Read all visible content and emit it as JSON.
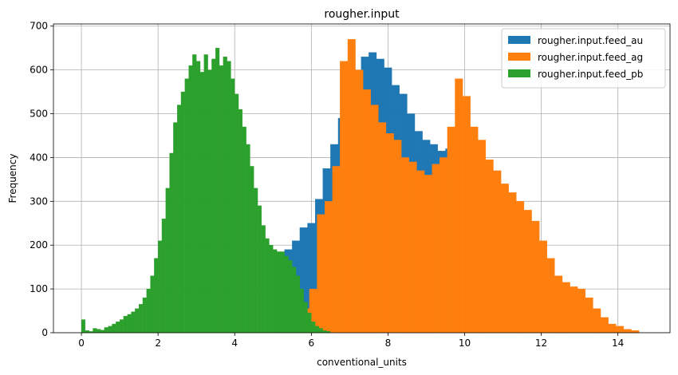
{
  "chart_data": {
    "type": "histogram",
    "title": "rougher.input",
    "xlabel": "conventional_units",
    "ylabel": "Frequency",
    "xlim": [
      -0.73,
      15.36
    ],
    "ylim": [
      0,
      705
    ],
    "x_ticks": [
      0,
      2,
      4,
      6,
      8,
      10,
      12,
      14
    ],
    "y_ticks": [
      0,
      100,
      200,
      300,
      400,
      500,
      600,
      700
    ],
    "grid": true,
    "legend_position": "top-right",
    "series": [
      {
        "name": "rougher.input.feed_au",
        "color": "#1f77b4",
        "bins": [
          [
            5.1,
            5.3,
            175
          ],
          [
            5.3,
            5.5,
            190
          ],
          [
            5.5,
            5.7,
            210
          ],
          [
            5.7,
            5.9,
            240
          ],
          [
            5.9,
            6.1,
            250
          ],
          [
            6.1,
            6.3,
            305
          ],
          [
            6.3,
            6.5,
            375
          ],
          [
            6.5,
            6.7,
            430
          ],
          [
            6.7,
            6.9,
            490
          ],
          [
            6.9,
            7.1,
            540
          ],
          [
            7.1,
            7.3,
            590
          ],
          [
            7.3,
            7.5,
            630
          ],
          [
            7.5,
            7.7,
            640
          ],
          [
            7.7,
            7.9,
            625
          ],
          [
            7.9,
            8.1,
            605
          ],
          [
            8.1,
            8.3,
            565
          ],
          [
            8.3,
            8.5,
            545
          ],
          [
            8.5,
            8.7,
            500
          ],
          [
            8.7,
            8.9,
            460
          ],
          [
            8.9,
            9.1,
            440
          ],
          [
            9.1,
            9.3,
            430
          ],
          [
            9.3,
            9.5,
            415
          ],
          [
            9.5,
            9.7,
            420
          ],
          [
            9.7,
            9.9,
            425
          ]
        ]
      },
      {
        "name": "rougher.input.feed_ag",
        "color": "#ff7f0e",
        "bins": [
          [
            5.75,
            5.95,
            55
          ],
          [
            5.95,
            6.15,
            100
          ],
          [
            6.15,
            6.35,
            270
          ],
          [
            6.35,
            6.55,
            300
          ],
          [
            6.55,
            6.75,
            380
          ],
          [
            6.75,
            6.95,
            620
          ],
          [
            6.95,
            7.15,
            670
          ],
          [
            7.15,
            7.35,
            600
          ],
          [
            7.35,
            7.55,
            555
          ],
          [
            7.55,
            7.75,
            520
          ],
          [
            7.75,
            7.95,
            480
          ],
          [
            7.95,
            8.15,
            455
          ],
          [
            8.15,
            8.35,
            440
          ],
          [
            8.35,
            8.55,
            400
          ],
          [
            8.55,
            8.75,
            390
          ],
          [
            8.75,
            8.95,
            370
          ],
          [
            8.95,
            9.15,
            360
          ],
          [
            9.15,
            9.35,
            385
          ],
          [
            9.35,
            9.55,
            400
          ],
          [
            9.55,
            9.75,
            470
          ],
          [
            9.75,
            9.95,
            580
          ],
          [
            9.95,
            10.15,
            540
          ],
          [
            10.15,
            10.35,
            470
          ],
          [
            10.35,
            10.55,
            440
          ],
          [
            10.55,
            10.75,
            395
          ],
          [
            10.75,
            10.95,
            370
          ],
          [
            10.95,
            11.15,
            340
          ],
          [
            11.15,
            11.35,
            320
          ],
          [
            11.35,
            11.55,
            300
          ],
          [
            11.55,
            11.75,
            280
          ],
          [
            11.75,
            11.95,
            255
          ],
          [
            11.95,
            12.15,
            210
          ],
          [
            12.15,
            12.35,
            170
          ],
          [
            12.35,
            12.55,
            130
          ],
          [
            12.55,
            12.75,
            115
          ],
          [
            12.75,
            12.95,
            105
          ],
          [
            12.95,
            13.15,
            100
          ],
          [
            13.15,
            13.35,
            80
          ],
          [
            13.35,
            13.55,
            55
          ],
          [
            13.55,
            13.75,
            35
          ],
          [
            13.75,
            13.95,
            20
          ],
          [
            13.95,
            14.15,
            15
          ],
          [
            14.15,
            14.35,
            8
          ],
          [
            14.35,
            14.55,
            5
          ]
        ]
      },
      {
        "name": "rougher.input.feed_pb",
        "color": "#2ca02c",
        "bins": [
          [
            0.0,
            0.1,
            30
          ],
          [
            0.1,
            0.2,
            5
          ],
          [
            0.2,
            0.3,
            3
          ],
          [
            0.3,
            0.4,
            10
          ],
          [
            0.4,
            0.5,
            8
          ],
          [
            0.5,
            0.6,
            6
          ],
          [
            0.6,
            0.7,
            12
          ],
          [
            0.7,
            0.8,
            15
          ],
          [
            0.8,
            0.9,
            20
          ],
          [
            0.9,
            1.0,
            25
          ],
          [
            1.0,
            1.1,
            30
          ],
          [
            1.1,
            1.2,
            38
          ],
          [
            1.2,
            1.3,
            42
          ],
          [
            1.3,
            1.4,
            48
          ],
          [
            1.4,
            1.5,
            55
          ],
          [
            1.5,
            1.6,
            65
          ],
          [
            1.6,
            1.7,
            80
          ],
          [
            1.7,
            1.8,
            100
          ],
          [
            1.8,
            1.9,
            130
          ],
          [
            1.9,
            2.0,
            170
          ],
          [
            2.0,
            2.1,
            210
          ],
          [
            2.1,
            2.2,
            260
          ],
          [
            2.2,
            2.3,
            330
          ],
          [
            2.3,
            2.4,
            410
          ],
          [
            2.4,
            2.5,
            480
          ],
          [
            2.5,
            2.6,
            520
          ],
          [
            2.6,
            2.7,
            550
          ],
          [
            2.7,
            2.8,
            580
          ],
          [
            2.8,
            2.9,
            610
          ],
          [
            2.9,
            3.0,
            635
          ],
          [
            3.0,
            3.1,
            620
          ],
          [
            3.1,
            3.2,
            595
          ],
          [
            3.2,
            3.3,
            635
          ],
          [
            3.3,
            3.4,
            600
          ],
          [
            3.4,
            3.5,
            625
          ],
          [
            3.5,
            3.6,
            650
          ],
          [
            3.6,
            3.7,
            610
          ],
          [
            3.7,
            3.8,
            630
          ],
          [
            3.8,
            3.9,
            620
          ],
          [
            3.9,
            4.0,
            580
          ],
          [
            4.0,
            4.1,
            545
          ],
          [
            4.1,
            4.2,
            510
          ],
          [
            4.2,
            4.3,
            470
          ],
          [
            4.3,
            4.4,
            430
          ],
          [
            4.4,
            4.5,
            380
          ],
          [
            4.5,
            4.6,
            330
          ],
          [
            4.6,
            4.7,
            290
          ],
          [
            4.7,
            4.8,
            245
          ],
          [
            4.8,
            4.9,
            215
          ],
          [
            4.9,
            5.0,
            200
          ],
          [
            5.0,
            5.1,
            190
          ],
          [
            5.1,
            5.2,
            185
          ],
          [
            5.2,
            5.3,
            185
          ],
          [
            5.3,
            5.4,
            175
          ],
          [
            5.4,
            5.5,
            165
          ],
          [
            5.5,
            5.6,
            150
          ],
          [
            5.6,
            5.7,
            130
          ],
          [
            5.7,
            5.8,
            100
          ],
          [
            5.8,
            5.9,
            70
          ],
          [
            5.9,
            6.0,
            45
          ],
          [
            6.0,
            6.1,
            25
          ],
          [
            6.1,
            6.2,
            15
          ],
          [
            6.2,
            6.3,
            10
          ],
          [
            6.3,
            6.4,
            5
          ],
          [
            6.4,
            6.5,
            3
          ]
        ]
      }
    ]
  }
}
